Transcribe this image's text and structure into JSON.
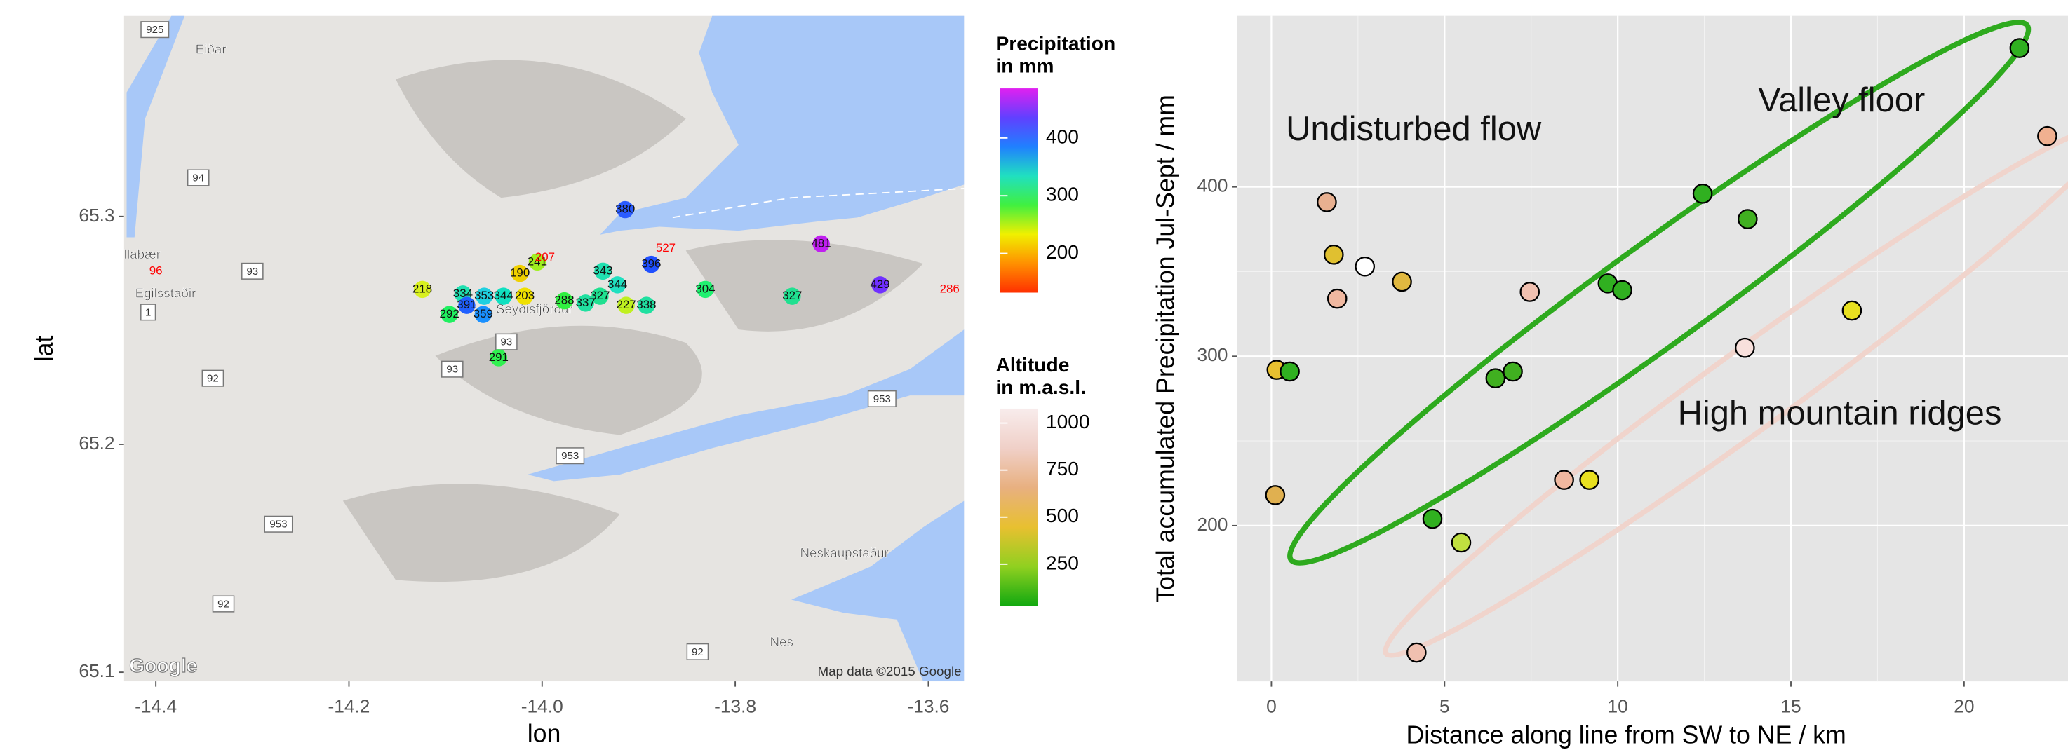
{
  "chart_data": [
    {
      "type": "map",
      "xlabel": "lon",
      "ylabel": "lat",
      "xlim": [
        -14.433,
        -13.563
      ],
      "ylim": [
        65.096,
        65.388
      ],
      "xticks": [
        -14.4,
        -14.2,
        {
          "value": -14,
          "label": "-14.0"
        },
        -13.8,
        -13.6
      ],
      "yticks": [
        65.1,
        65.2,
        65.3
      ],
      "x": [
        -13.914,
        -13.711,
        -13.872,
        -13.887,
        -13.65,
        -13.578,
        -14.4,
        -14.124,
        -14.082,
        -14.06,
        -14.04,
        -14.023,
        -14.005,
        -13.997,
        -14.018,
        -14.078,
        -14.096,
        -14.061,
        -13.937,
        -13.922,
        -13.94,
        -13.977,
        -13.955,
        -13.913,
        -13.892,
        -13.831,
        -13.741,
        -14.045
      ],
      "y": [
        65.303,
        65.288,
        65.286,
        65.279,
        65.27,
        65.268,
        65.276,
        65.268,
        65.266,
        65.265,
        65.265,
        65.275,
        65.28,
        65.282,
        65.265,
        65.261,
        65.257,
        65.257,
        65.276,
        65.27,
        65.265,
        65.263,
        65.262,
        65.261,
        65.261,
        65.268,
        65.265,
        65.238
      ],
      "values": [
        380,
        481,
        527,
        396,
        429,
        286,
        96,
        218,
        334,
        353,
        344,
        190,
        241,
        207,
        203,
        391,
        292,
        359,
        343,
        344,
        327,
        288,
        337,
        227,
        338,
        304,
        327,
        291
      ],
      "colors": [
        "#2a5cff",
        "#c020f0",
        null,
        "#2050ff",
        "#7030ff",
        null,
        null,
        "#d8f020",
        "#20e0b0",
        "#20d0e0",
        "#10e0c0",
        "#f0d000",
        "#a0f020",
        null,
        "#f0e000",
        "#2060ff",
        "#20f060",
        "#1a90ff",
        "#20e0b0",
        "#20e0c0",
        "#20e090",
        "#30f040",
        "#20e0a0",
        "#c0f020",
        "#20e0a0",
        "#20f070",
        "#20e090",
        "#30f050"
      ],
      "places": [
        {
          "text": "Eiðar",
          "lon": -14.343,
          "lat": 65.373
        },
        {
          "text": "Egilsstaðir",
          "lon": -14.39,
          "lat": 65.266
        },
        {
          "text": "llabær",
          "lon": -14.414,
          "lat": 65.283
        },
        {
          "text": "Seyðisfjörður",
          "lon": -14.008,
          "lat": 65.259
        },
        {
          "text": "Neskaupstaður",
          "lon": -13.687,
          "lat": 65.152
        },
        {
          "text": "Nes",
          "lon": -13.752,
          "lat": 65.113
        }
      ],
      "roads": [
        {
          "text": "925",
          "lon": -14.401,
          "lat": 65.382
        },
        {
          "text": "94",
          "lon": -14.356,
          "lat": 65.317
        },
        {
          "text": "93",
          "lon": -14.3,
          "lat": 65.276
        },
        {
          "text": "1",
          "lon": -14.408,
          "lat": 65.258
        },
        {
          "text": "92",
          "lon": -14.341,
          "lat": 65.229
        },
        {
          "text": "93",
          "lon": -14.037,
          "lat": 65.245
        },
        {
          "text": "93",
          "lon": -14.093,
          "lat": 65.233
        },
        {
          "text": "953",
          "lon": -13.971,
          "lat": 65.195
        },
        {
          "text": "953",
          "lon": -13.648,
          "lat": 65.22
        },
        {
          "text": "953",
          "lon": -14.273,
          "lat": 65.165
        },
        {
          "text": "92",
          "lon": -14.33,
          "lat": 65.13
        },
        {
          "text": "92",
          "lon": -13.839,
          "lat": 65.109
        }
      ],
      "logo": "Google",
      "attribution": "Map data ©2015 Google",
      "legends": [
        {
          "title": [
            "Precipitation",
            "in mm"
          ],
          "lim": [
            132,
            486
          ],
          "ticks": [
            200,
            300,
            400
          ],
          "colors": [
            "#ff3000",
            "#ff9000",
            "#f0f000",
            "#40f040",
            "#20e0c0",
            "#2080ff",
            "#6040ff",
            "#e020f0"
          ]
        },
        {
          "title": [
            "Altitude",
            "in m.a.s.l."
          ],
          "lim": [
            26,
            1077
          ],
          "ticks": [
            250,
            500,
            750,
            1000
          ],
          "colors": [
            "#10a810",
            "#90d020",
            "#e8c030",
            "#e8b080",
            "#f0d0c8",
            "#f8ecec"
          ]
        }
      ]
    },
    {
      "type": "scatter",
      "xlabel": "Distance along line from SW to NE / km",
      "ylabel": "Total accumulated Precipitation Jul-Sept / mm",
      "xlim": [
        -0.99,
        23.0
      ],
      "ylim": [
        108,
        501
      ],
      "xticks": [
        0,
        5,
        10,
        15,
        20
      ],
      "yticks": [
        200,
        300,
        400
      ],
      "grid": true,
      "x": [
        0.11,
        0.15,
        0.53,
        1.6,
        1.8,
        1.9,
        2.7,
        3.77,
        4.19,
        4.65,
        5.48,
        6.47,
        6.97,
        7.46,
        8.45,
        9.18,
        9.71,
        10.13,
        12.45,
        13.75,
        13.67,
        16.76,
        21.6,
        22.4
      ],
      "y": [
        218,
        292,
        291,
        391,
        360,
        334,
        353,
        344,
        125,
        204,
        190,
        287,
        291,
        338,
        227,
        227,
        343,
        339,
        396,
        381,
        305,
        327,
        482,
        430
      ],
      "colors": [
        "#e0b050",
        "#e8c030",
        "#30b020",
        "#e8b090",
        "#e0c030",
        "#f0b8a0",
        "#ffffff",
        "#e0b840",
        "#f0c0b0",
        "#30b020",
        "#c0e040",
        "#40b020",
        "#40b020",
        "#f0c0b0",
        "#f0b8a0",
        "#e8e020",
        "#30b020",
        "#30b020",
        "#30b020",
        "#40b020",
        "#f8e0dc",
        "#e8e020",
        "#30b020",
        "#f0b090"
      ],
      "annotations": [
        {
          "text": "Undisturbed flow",
          "x": 0.42,
          "y": 433
        },
        {
          "text": "Valley floor",
          "x": 14.05,
          "y": 450
        },
        {
          "text": "High mountain ridges",
          "x": 11.73,
          "y": 265
        }
      ]
    }
  ]
}
